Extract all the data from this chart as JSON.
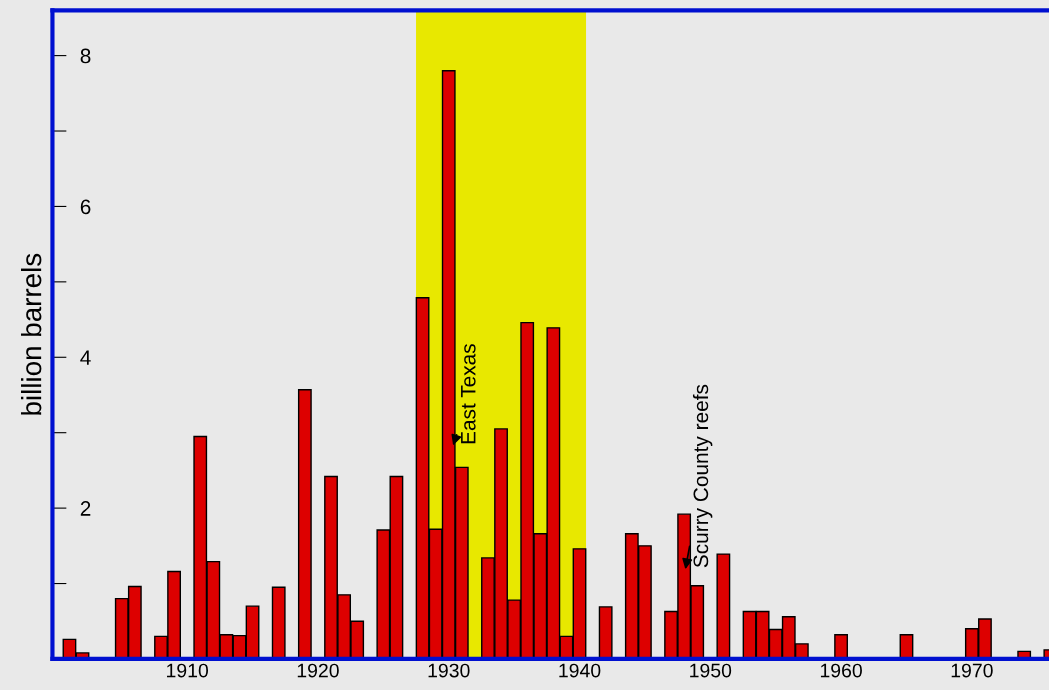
{
  "chart_data": {
    "type": "bar",
    "ylabel": "billion barrels",
    "x": [
      1901,
      1902,
      1905,
      1906,
      1908,
      1909,
      1911,
      1912,
      1913,
      1914,
      1915,
      1917,
      1919,
      1921,
      1922,
      1923,
      1925,
      1926,
      1928,
      1929,
      1930,
      1931,
      1933,
      1934,
      1935,
      1936,
      1937,
      1938,
      1939,
      1940,
      1942,
      1944,
      1945,
      1947,
      1948,
      1949,
      1951,
      1953,
      1954,
      1955,
      1956,
      1957,
      1960,
      1965,
      1970,
      1971,
      1974,
      1976
    ],
    "values": [
      0.26,
      0.08,
      0.8,
      0.96,
      0.3,
      1.16,
      2.95,
      1.29,
      0.32,
      0.31,
      0.7,
      0.95,
      3.57,
      2.42,
      0.85,
      0.5,
      1.71,
      2.42,
      4.79,
      1.72,
      7.8,
      2.54,
      1.34,
      3.05,
      0.78,
      4.46,
      1.66,
      4.39,
      0.3,
      1.46,
      0.69,
      1.66,
      1.5,
      0.63,
      1.92,
      0.97,
      1.39,
      0.63,
      0.63,
      0.39,
      0.56,
      0.2,
      0.32,
      0.32,
      0.4,
      0.53,
      0.1,
      0.12
    ],
    "color": "#dd0000",
    "xlim": [
      1899.7,
      1976.7
    ],
    "xticks": [
      1910,
      1920,
      1930,
      1940,
      1950,
      1960,
      1970
    ],
    "ylim": [
      0,
      8.6
    ],
    "yticks": [
      {
        "value": 1,
        "label": null
      },
      2,
      {
        "value": 3,
        "label": null
      },
      4,
      {
        "value": 5,
        "label": null
      },
      6,
      {
        "value": 7,
        "label": null
      },
      8
    ],
    "bands": [
      {
        "axis": "x",
        "from": 1927.5,
        "to": 1940.5,
        "label": null,
        "color": "#e8e800"
      }
    ],
    "annotations": [
      "East Texas",
      "Scurry County reefs"
    ],
    "grid": false,
    "legend": false
  }
}
